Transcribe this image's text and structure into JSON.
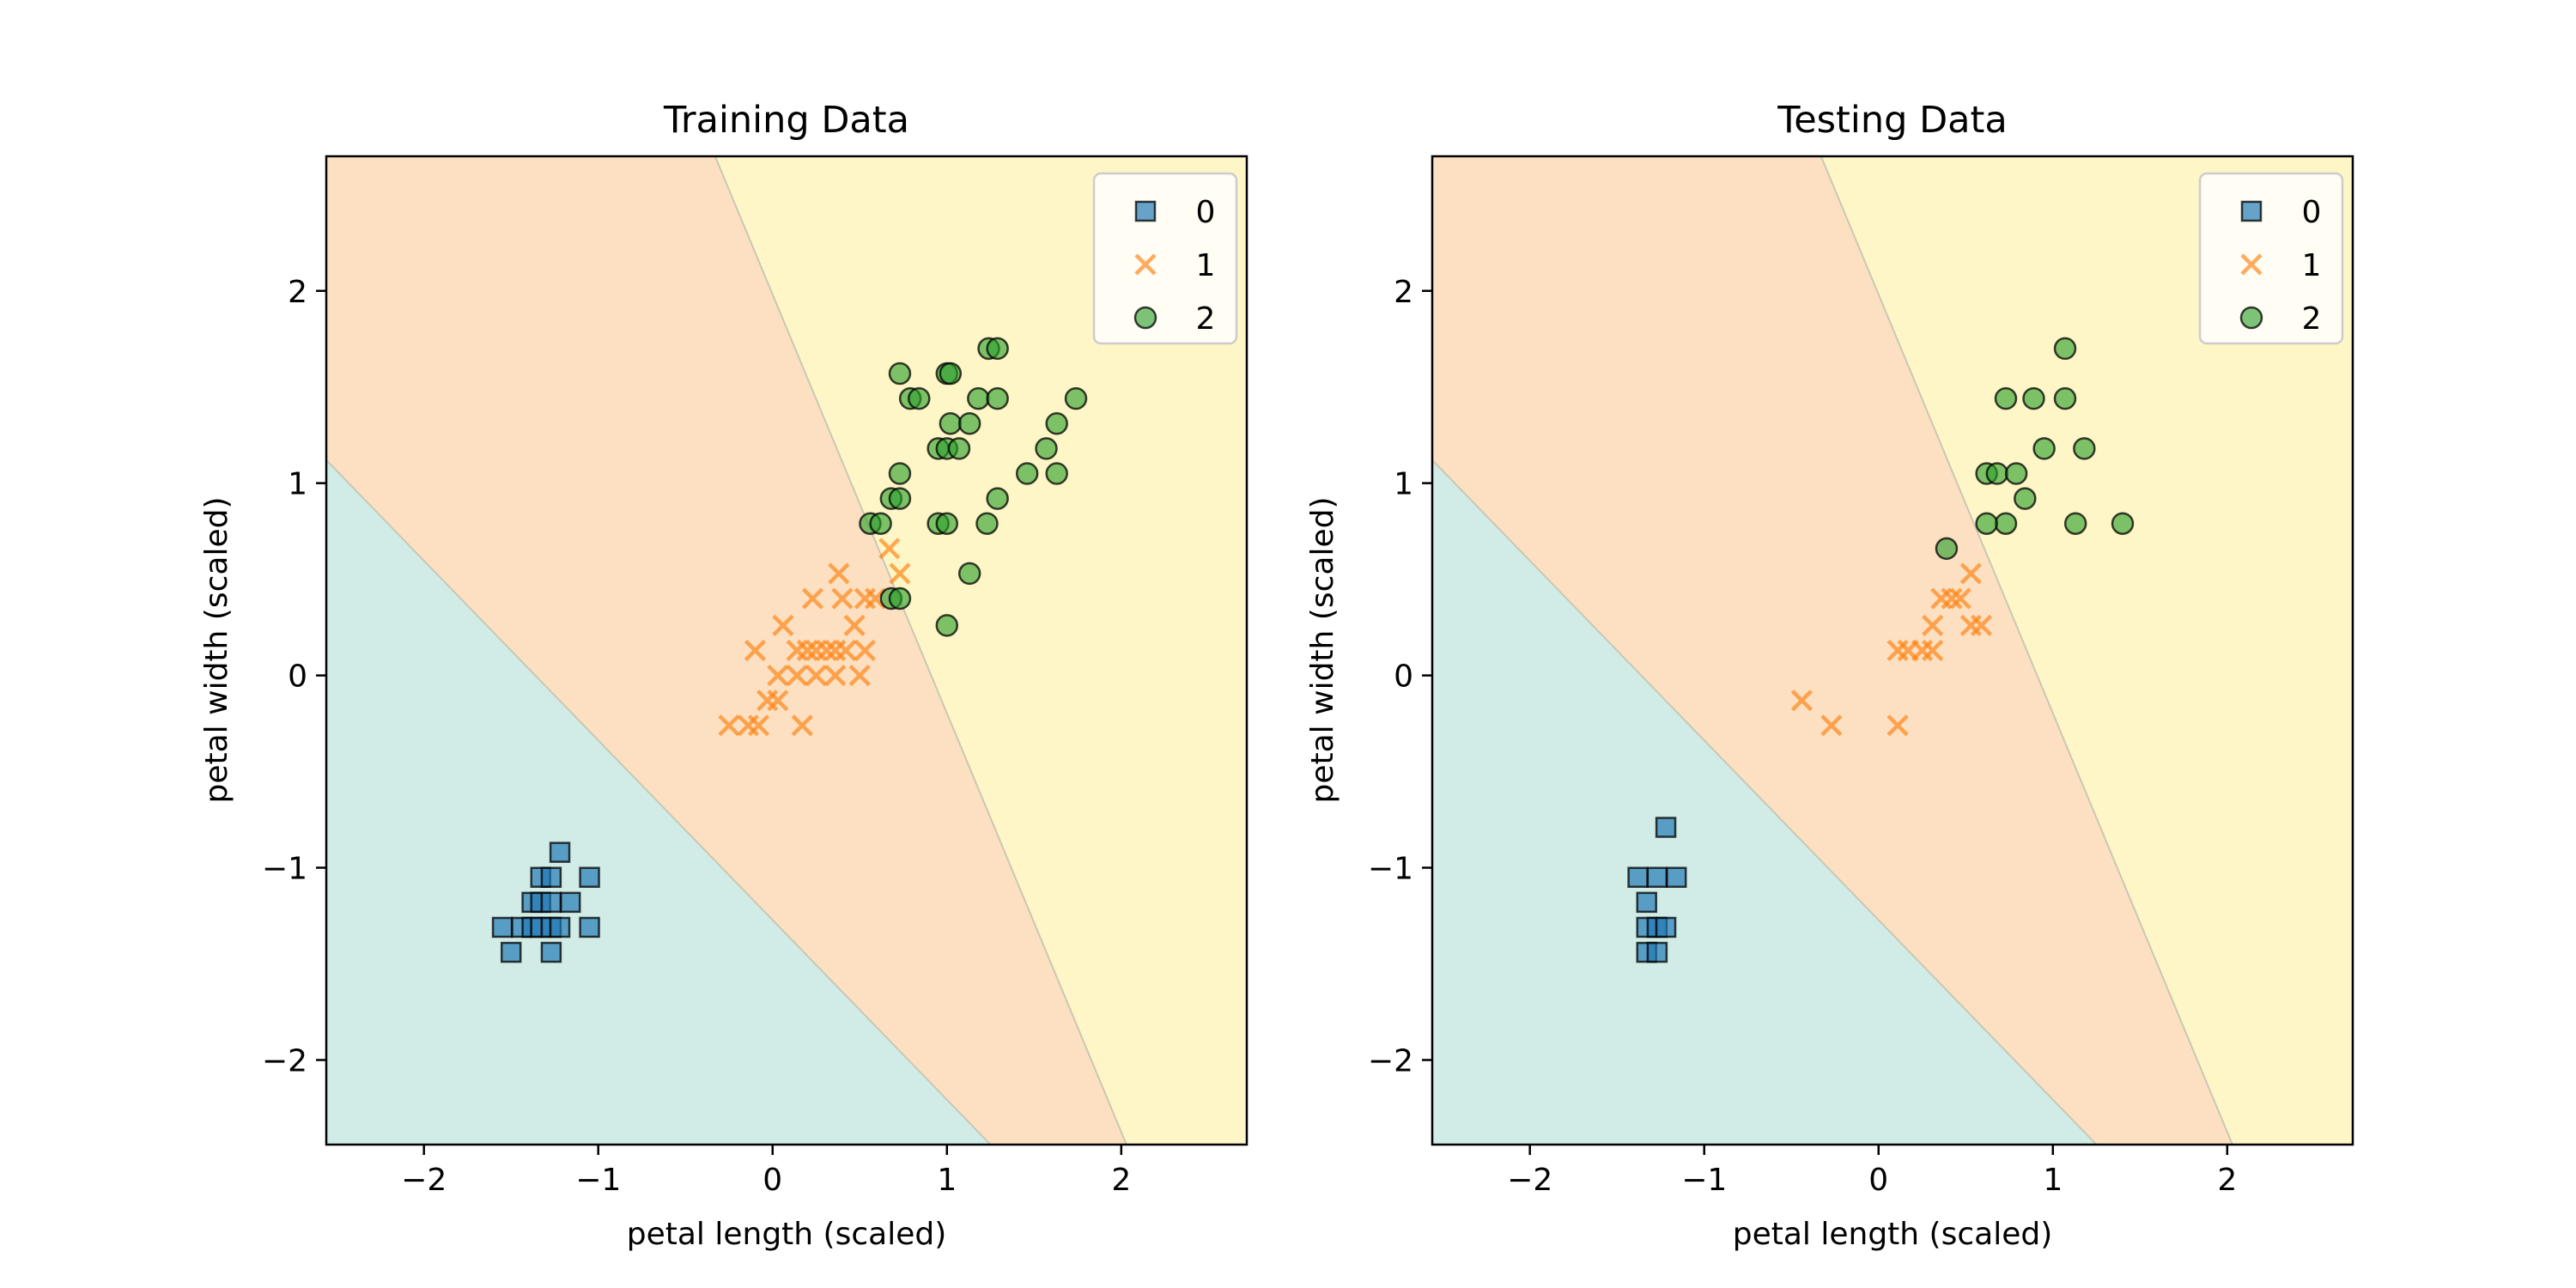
{
  "colors": {
    "region_0": "#d1ece6",
    "region_1": "#fce0c1",
    "region_2": "#fef6c6",
    "class_0": "#1f77b4",
    "class_1": "#ff7f0e",
    "class_2": "#2ca02c",
    "boundary": "#c8c8b4"
  },
  "chart_data": [
    {
      "type": "scatter",
      "title": "Training Data",
      "xlabel": "petal length (scaled)",
      "ylabel": "petal width (scaled)",
      "xlim": [
        -2.56,
        2.72
      ],
      "ylim": [
        -2.44,
        2.7
      ],
      "x_ticks": [
        -2,
        -1,
        0,
        1,
        2
      ],
      "y_ticks": [
        -2,
        -1,
        0,
        1,
        2
      ],
      "x_tick_labels": [
        "−2",
        "−1",
        "0",
        "1",
        "2"
      ],
      "y_tick_labels": [
        "−2",
        "−1",
        "0",
        "1",
        "2"
      ],
      "legend_placement": "top-right",
      "decision_regions": [
        {
          "class": "0",
          "boundary": [
            [
              -2.56,
              1.12
            ],
            [
              1.25,
              -2.44
            ]
          ]
        },
        {
          "class": "1",
          "boundary": [
            [
              -0.33,
              2.7
            ],
            [
              2.03,
              -2.44
            ]
          ]
        },
        {
          "class": "2"
        }
      ],
      "series": [
        {
          "name": "0",
          "marker": "square",
          "points": [
            [
              -1.22,
              -0.92
            ],
            [
              -1.33,
              -1.05
            ],
            [
              -1.27,
              -1.05
            ],
            [
              -1.05,
              -1.05
            ],
            [
              -1.38,
              -1.18
            ],
            [
              -1.33,
              -1.18
            ],
            [
              -1.27,
              -1.18
            ],
            [
              -1.16,
              -1.18
            ],
            [
              -1.55,
              -1.31
            ],
            [
              -1.44,
              -1.31
            ],
            [
              -1.38,
              -1.31
            ],
            [
              -1.33,
              -1.31
            ],
            [
              -1.27,
              -1.31
            ],
            [
              -1.22,
              -1.31
            ],
            [
              -1.05,
              -1.31
            ],
            [
              -1.5,
              -1.44
            ],
            [
              -1.27,
              -1.44
            ]
          ]
        },
        {
          "name": "1",
          "marker": "x",
          "points": [
            [
              -0.25,
              -0.26
            ],
            [
              -0.14,
              -0.26
            ],
            [
              -0.08,
              -0.26
            ],
            [
              0.17,
              -0.26
            ],
            [
              -0.03,
              -0.13
            ],
            [
              0.03,
              -0.13
            ],
            [
              0.03,
              0.0
            ],
            [
              0.14,
              0.0
            ],
            [
              0.25,
              0.0
            ],
            [
              0.36,
              0.0
            ],
            [
              0.5,
              0.0
            ],
            [
              -0.1,
              0.13
            ],
            [
              0.14,
              0.13
            ],
            [
              0.2,
              0.13
            ],
            [
              0.25,
              0.13
            ],
            [
              0.31,
              0.13
            ],
            [
              0.36,
              0.13
            ],
            [
              0.42,
              0.13
            ],
            [
              0.53,
              0.13
            ],
            [
              0.06,
              0.26
            ],
            [
              0.47,
              0.26
            ],
            [
              0.23,
              0.4
            ],
            [
              0.4,
              0.4
            ],
            [
              0.53,
              0.4
            ],
            [
              0.59,
              0.4
            ],
            [
              0.38,
              0.53
            ],
            [
              0.73,
              0.53
            ],
            [
              0.67,
              0.66
            ]
          ]
        },
        {
          "name": "2",
          "marker": "circle",
          "points": [
            [
              1.0,
              0.26
            ],
            [
              1.13,
              0.53
            ],
            [
              0.68,
              0.4
            ],
            [
              0.73,
              0.4
            ],
            [
              0.56,
              0.79
            ],
            [
              0.62,
              0.79
            ],
            [
              0.95,
              0.79
            ],
            [
              1.0,
              0.79
            ],
            [
              1.23,
              0.79
            ],
            [
              0.68,
              0.92
            ],
            [
              0.73,
              0.92
            ],
            [
              1.29,
              0.92
            ],
            [
              0.73,
              1.05
            ],
            [
              1.46,
              1.05
            ],
            [
              1.63,
              1.05
            ],
            [
              0.95,
              1.18
            ],
            [
              1.0,
              1.18
            ],
            [
              1.07,
              1.18
            ],
            [
              1.57,
              1.18
            ],
            [
              1.02,
              1.31
            ],
            [
              1.13,
              1.31
            ],
            [
              1.63,
              1.31
            ],
            [
              0.79,
              1.44
            ],
            [
              0.84,
              1.44
            ],
            [
              1.18,
              1.44
            ],
            [
              1.29,
              1.44
            ],
            [
              1.74,
              1.44
            ],
            [
              0.73,
              1.57
            ],
            [
              1.0,
              1.57
            ],
            [
              1.02,
              1.57
            ],
            [
              1.24,
              1.7
            ],
            [
              1.29,
              1.7
            ]
          ]
        }
      ]
    },
    {
      "type": "scatter",
      "title": "Testing Data",
      "xlabel": "petal length (scaled)",
      "ylabel": "petal width (scaled)",
      "xlim": [
        -2.56,
        2.72
      ],
      "ylim": [
        -2.44,
        2.7
      ],
      "x_ticks": [
        -2,
        -1,
        0,
        1,
        2
      ],
      "y_ticks": [
        -2,
        -1,
        0,
        1,
        2
      ],
      "x_tick_labels": [
        "−2",
        "−1",
        "0",
        "1",
        "2"
      ],
      "y_tick_labels": [
        "−2",
        "−1",
        "0",
        "1",
        "2"
      ],
      "legend_placement": "top-right",
      "decision_regions": [
        {
          "class": "0",
          "boundary": [
            [
              -2.56,
              1.12
            ],
            [
              1.25,
              -2.44
            ]
          ]
        },
        {
          "class": "1",
          "boundary": [
            [
              -0.33,
              2.7
            ],
            [
              2.03,
              -2.44
            ]
          ]
        },
        {
          "class": "2"
        }
      ],
      "series": [
        {
          "name": "0",
          "marker": "square",
          "points": [
            [
              -1.22,
              -0.79
            ],
            [
              -1.38,
              -1.05
            ],
            [
              -1.27,
              -1.05
            ],
            [
              -1.16,
              -1.05
            ],
            [
              -1.33,
              -1.18
            ],
            [
              -1.33,
              -1.31
            ],
            [
              -1.27,
              -1.31
            ],
            [
              -1.22,
              -1.31
            ],
            [
              -1.33,
              -1.44
            ],
            [
              -1.27,
              -1.44
            ]
          ]
        },
        {
          "name": "1",
          "marker": "x",
          "points": [
            [
              -0.44,
              -0.13
            ],
            [
              -0.27,
              -0.26
            ],
            [
              0.11,
              -0.26
            ],
            [
              0.11,
              0.13
            ],
            [
              0.17,
              0.13
            ],
            [
              0.25,
              0.13
            ],
            [
              0.31,
              0.13
            ],
            [
              0.31,
              0.26
            ],
            [
              0.53,
              0.26
            ],
            [
              0.59,
              0.26
            ],
            [
              0.36,
              0.4
            ],
            [
              0.42,
              0.4
            ],
            [
              0.47,
              0.4
            ],
            [
              0.53,
              0.53
            ]
          ]
        },
        {
          "name": "2",
          "marker": "circle",
          "points": [
            [
              0.39,
              0.66
            ],
            [
              0.73,
              0.79
            ],
            [
              0.62,
              0.79
            ],
            [
              1.13,
              0.79
            ],
            [
              1.4,
              0.79
            ],
            [
              0.84,
              0.92
            ],
            [
              0.62,
              1.05
            ],
            [
              0.68,
              1.05
            ],
            [
              0.79,
              1.05
            ],
            [
              0.95,
              1.18
            ],
            [
              1.18,
              1.18
            ],
            [
              0.73,
              1.44
            ],
            [
              0.89,
              1.44
            ],
            [
              1.07,
              1.44
            ],
            [
              1.07,
              1.7
            ]
          ]
        }
      ]
    }
  ]
}
